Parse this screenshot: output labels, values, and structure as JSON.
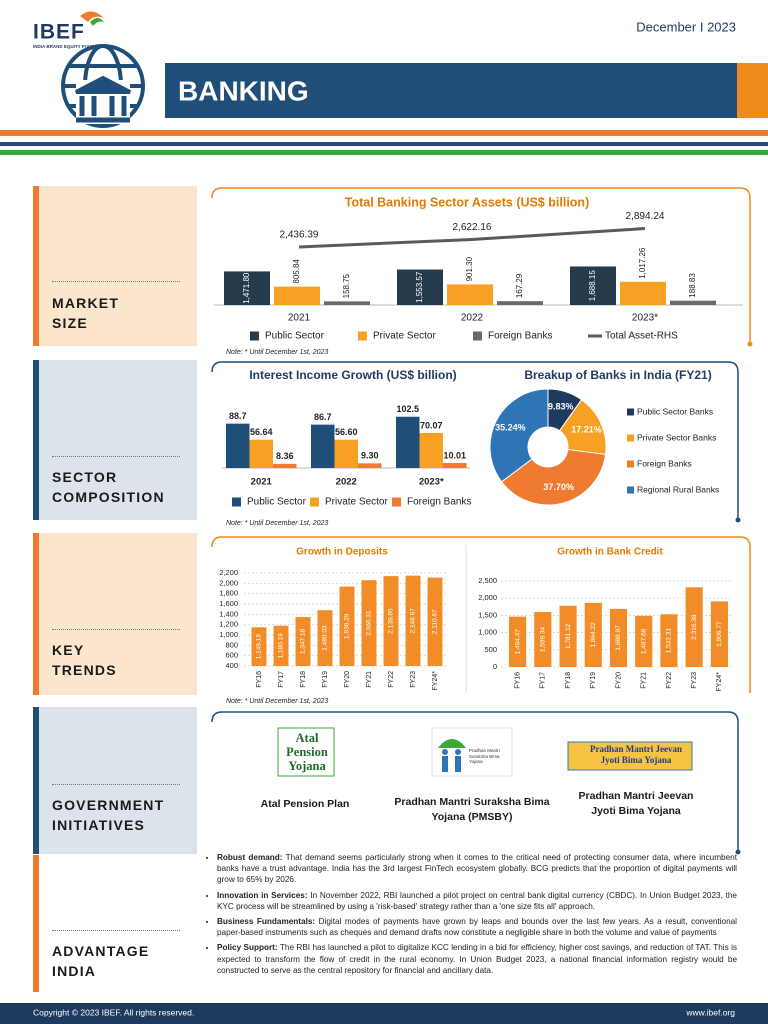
{
  "header": {
    "logo": "IBEF",
    "logo_sub": "INDIA BRAND EQUITY FOUNDATION",
    "date": "December I 2023",
    "title": "BANKING"
  },
  "sections": [
    "MARKET SIZE",
    "SECTOR COMPOSITION",
    "KEY TRENDS",
    "GOVERNMENT INITIATIVES",
    "ADVANTAGE INDIA"
  ],
  "chart_data": [
    {
      "type": "bar_line",
      "title": "Total Banking Sector Assets (US$ billion)",
      "categories": [
        "2021",
        "2022",
        "2023*"
      ],
      "series": [
        {
          "name": "Public Sector",
          "color": "#253b4b",
          "values": [
            1471.8,
            1553.57,
            1688.15
          ],
          "value_labels": [
            "1,471.80",
            "1,553.57",
            "1,688.15"
          ]
        },
        {
          "name": "Private Sector",
          "color": "#f6a124",
          "values": [
            805.84,
            901.3,
            1017.26
          ],
          "value_labels": [
            "805.84",
            "901.30",
            "1,017.26"
          ]
        },
        {
          "name": "Foreign Banks",
          "color": "#6b6b6b",
          "values": [
            158.75,
            167.29,
            188.83
          ],
          "value_labels": [
            "158.75",
            "167.29",
            "188.83"
          ]
        },
        {
          "name": "Total Asset-RHS",
          "color": "#5a5a5a",
          "axis": "y2",
          "values": [
            2436.39,
            2622.16,
            2894.24
          ],
          "value_labels": [
            "2,436.39",
            "2,622.16",
            "2,894.24"
          ]
        }
      ],
      "ylim": [
        0,
        4600
      ],
      "y2lim": [
        1000,
        3600
      ],
      "note": "Note: * Until December 1st, 2023"
    },
    {
      "type": "bar",
      "title": "Interest Income Growth (US$ billion)",
      "categories": [
        "2021",
        "2022",
        "2023*"
      ],
      "series": [
        {
          "name": "Public Sector",
          "color": "#1f4e79",
          "values": [
            88.7,
            86.7,
            102.5
          ],
          "value_labels": [
            "88.7",
            "86.7",
            "102.5"
          ]
        },
        {
          "name": "Private Sector",
          "color": "#f6a124",
          "values": [
            56.64,
            56.6,
            70.07
          ],
          "value_labels": [
            "56.64",
            "56.60",
            "70.07"
          ]
        },
        {
          "name": "Foreign Banks",
          "color": "#ee7b30",
          "values": [
            8.36,
            9.3,
            10.01
          ],
          "value_labels": [
            "8.36",
            "9.30",
            "10.01"
          ]
        }
      ],
      "ylim": [
        0,
        110
      ],
      "note": "Note: * Until December 1st, 2023"
    },
    {
      "type": "pie",
      "title": "Breakup of Banks in India (FY21)",
      "donut": true,
      "categories": [
        "Public Sector Banks",
        "Private Sector Banks",
        "Foreign Banks",
        "Regional Rural Banks"
      ],
      "values": [
        9.83,
        17.21,
        37.7,
        35.24
      ],
      "value_labels": [
        "9.83%",
        "17.21%",
        "37.70%",
        "35.24%"
      ],
      "colors": [
        "#1f3a5f",
        "#f6a124",
        "#ee7b30",
        "#2e75b6"
      ]
    },
    {
      "type": "bar",
      "title": "Growth in Deposits",
      "categories": [
        "FY16",
        "FY17",
        "FY18",
        "FY19",
        "FY20",
        "FY21",
        "FY22",
        "FY23",
        "FY24*"
      ],
      "values": [
        1149.19,
        1180.19,
        1347.18,
        1480.03,
        1936.29,
        2060.31,
        2139.85,
        2148.67,
        2110.67
      ],
      "value_labels": [
        "1,149.19",
        "1,180.19",
        "1,347.18",
        "1,480.03",
        "1,936.29",
        "2,060.31",
        "2,139.85",
        "2,148.67",
        "2,110.67"
      ],
      "color": "#f28c28",
      "ylim": [
        400,
        2200
      ],
      "yticks": [
        400,
        600,
        800,
        {
          "value": 1000,
          "label": "1,000"
        },
        {
          "value": 1200,
          "label": "1,200"
        },
        {
          "value": 1400,
          "label": "1,400"
        },
        {
          "value": 1600,
          "label": "1,600"
        },
        {
          "value": 1800,
          "label": "1,800"
        },
        {
          "value": 2000,
          "label": "2,000"
        },
        {
          "value": 2200,
          "label": "2,200"
        }
      ],
      "grid": true,
      "note": "Note: * Until December 1st, 2023"
    },
    {
      "type": "bar",
      "title": "Growth in Bank Credit",
      "categories": [
        "FY16",
        "FY17",
        "FY18",
        "FY19",
        "FY20",
        "FY21",
        "FY22",
        "FY23",
        "FY24*"
      ],
      "values": [
        1464.47,
        1599.34,
        1781.12,
        1864.22,
        1688.97,
        1487.68,
        1532.31,
        2316.38,
        1906.77
      ],
      "value_labels": [
        "1,464.47",
        "1,599.34",
        "1,781.12",
        "1,864.22",
        "1,688.97",
        "1,487.68",
        "1,532.31",
        "2,316.38",
        "1,906.77"
      ],
      "color": "#f28c28",
      "ylim": [
        0,
        2500
      ],
      "yticks": [
        0,
        500,
        {
          "value": 1000,
          "label": "1,000"
        },
        {
          "value": 1500,
          "label": "1,500"
        },
        {
          "value": 2000,
          "label": "2,000"
        },
        {
          "value": 2500,
          "label": "2,500"
        }
      ],
      "grid": true
    }
  ],
  "initiatives": [
    {
      "logo": "Atal Pension Yojana",
      "caption": "Atal Pension Plan"
    },
    {
      "logo": "Pradhan Mantri Suraksha Bima Yojana",
      "caption": "Pradhan Mantri Suraksha Bima Yojana (PMSBY)"
    },
    {
      "logo": "Pradhan Mantri Jeevan Jyoti Bima Yojana",
      "caption": "Pradhan Mantri Jeevan Jyoti Bima Yojana"
    }
  ],
  "advantages": [
    {
      "lead": "Robust demand:",
      "text": "That demand seems particularly strong when it comes to the critical need of protecting consumer data, where incumbent banks have a trust advantage. India has the 3rd largest FinTech ecosystem globally. BCG predicts that the proportion of digital payments will grow to 65% by 2026."
    },
    {
      "lead": "Innovation in Services:",
      "text": "In November 2022, RBI launched a pilot project on central bank digital currency (CBDC). In Union Budget 2023, the KYC process will be streamlined by using a 'risk-based' strategy rather than a 'one size fits all' approach."
    },
    {
      "lead": "Business Fundamentals:",
      "text": "Digital modes of payments have grown by leaps and bounds over the last few years. As a result, conventional paper-based instruments such as cheques and demand drafts now constitute a negligible share in both the volume and value of payments"
    },
    {
      "lead": "Policy Support:",
      "text": "The RBI has launched a pilot to digitalize KCC lending in a bid for efficiency, higher cost savings, and reduction of TAT. This is expected to transform the flow of credit in the rural economy. In Union Budget 2023, a national financial information registry would be constructed to serve as the central repository for financial and ancillary data."
    }
  ],
  "footer": {
    "copyright": "Copyright © 2023 IBEF. All rights reserved.",
    "website": "www.ibef.org"
  }
}
